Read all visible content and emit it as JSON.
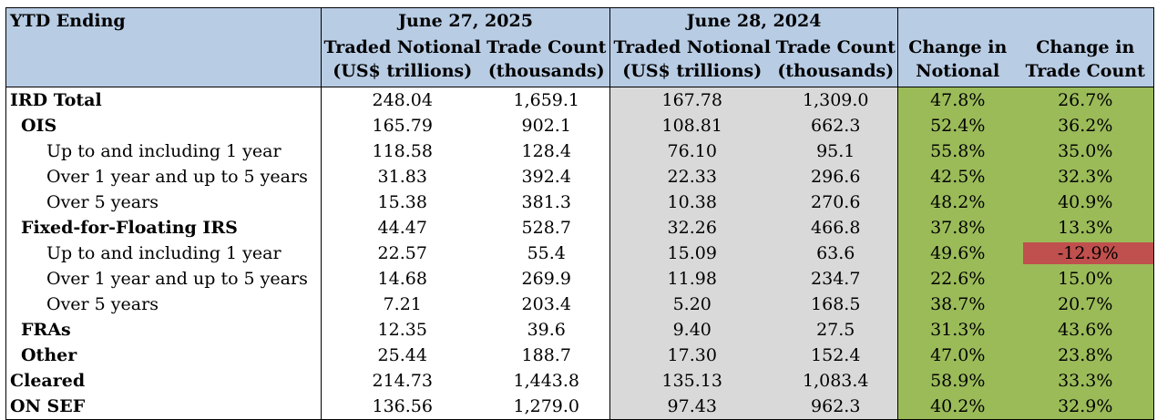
{
  "header": {
    "ytd_label": "YTD Ending",
    "period_2025": "June 27, 2025",
    "period_2024": "June 28, 2024",
    "notional_col": [
      "Traded Notional",
      "(US$ trillions)"
    ],
    "count_col": [
      "Trade Count",
      "(thousands)"
    ],
    "change_notional": [
      "Change in",
      "Notional"
    ],
    "change_count": [
      "Change in",
      "Trade Count"
    ]
  },
  "rows": [
    {
      "label": "IRD Total",
      "level": 0,
      "n2025": "248.04",
      "c2025": "1,659.1",
      "n2024": "167.78",
      "c2024": "1,309.0",
      "chg_n": "47.8%",
      "chg_c": "26.7%",
      "neg": false
    },
    {
      "label": "OIS",
      "level": 1,
      "n2025": "165.79",
      "c2025": "902.1",
      "n2024": "108.81",
      "c2024": "662.3",
      "chg_n": "52.4%",
      "chg_c": "36.2%",
      "neg": false
    },
    {
      "label": "Up to and including 1 year",
      "level": 2,
      "n2025": "118.58",
      "c2025": "128.4",
      "n2024": "76.10",
      "c2024": "95.1",
      "chg_n": "55.8%",
      "chg_c": "35.0%",
      "neg": false
    },
    {
      "label": "Over 1 year and up to 5 years",
      "level": 2,
      "n2025": "31.83",
      "c2025": "392.4",
      "n2024": "22.33",
      "c2024": "296.6",
      "chg_n": "42.5%",
      "chg_c": "32.3%",
      "neg": false
    },
    {
      "label": "Over 5 years",
      "level": 2,
      "n2025": "15.38",
      "c2025": "381.3",
      "n2024": "10.38",
      "c2024": "270.6",
      "chg_n": "48.2%",
      "chg_c": "40.9%",
      "neg": false
    },
    {
      "label": "Fixed-for-Floating IRS",
      "level": 1,
      "n2025": "44.47",
      "c2025": "528.7",
      "n2024": "32.26",
      "c2024": "466.8",
      "chg_n": "37.8%",
      "chg_c": "13.3%",
      "neg": false
    },
    {
      "label": "Up to and including 1 year",
      "level": 2,
      "n2025": "22.57",
      "c2025": "55.4",
      "n2024": "15.09",
      "c2024": "63.6",
      "chg_n": "49.6%",
      "chg_c": "-12.9%",
      "neg": true
    },
    {
      "label": "Over 1 year and up to 5 years",
      "level": 2,
      "n2025": "14.68",
      "c2025": "269.9",
      "n2024": "11.98",
      "c2024": "234.7",
      "chg_n": "22.6%",
      "chg_c": "15.0%",
      "neg": false
    },
    {
      "label": "Over 5 years",
      "level": 2,
      "n2025": "7.21",
      "c2025": "203.4",
      "n2024": "5.20",
      "c2024": "168.5",
      "chg_n": "38.7%",
      "chg_c": "20.7%",
      "neg": false
    },
    {
      "label": "FRAs",
      "level": 1,
      "n2025": "12.35",
      "c2025": "39.6",
      "n2024": "9.40",
      "c2024": "27.5",
      "chg_n": "31.3%",
      "chg_c": "43.6%",
      "neg": false
    },
    {
      "label": "Other",
      "level": 1,
      "n2025": "25.44",
      "c2025": "188.7",
      "n2024": "17.30",
      "c2024": "152.4",
      "chg_n": "47.0%",
      "chg_c": "23.8%",
      "neg": false
    },
    {
      "label": "Cleared",
      "level": 0,
      "n2025": "214.73",
      "c2025": "1,443.8",
      "n2024": "135.13",
      "c2024": "1,083.4",
      "chg_n": "58.9%",
      "chg_c": "33.3%",
      "neg": false
    },
    {
      "label": "ON SEF",
      "level": 0,
      "n2025": "136.56",
      "c2025": "1,279.0",
      "n2024": "97.43",
      "c2024": "962.3",
      "chg_n": "40.2%",
      "chg_c": "32.9%",
      "neg": false
    }
  ],
  "colors": {
    "header_bg": "#b8cce4",
    "prior_year_bg": "#d9d9d9",
    "change_bg": "#9bbb59",
    "negative_bg": "#c0504d"
  }
}
